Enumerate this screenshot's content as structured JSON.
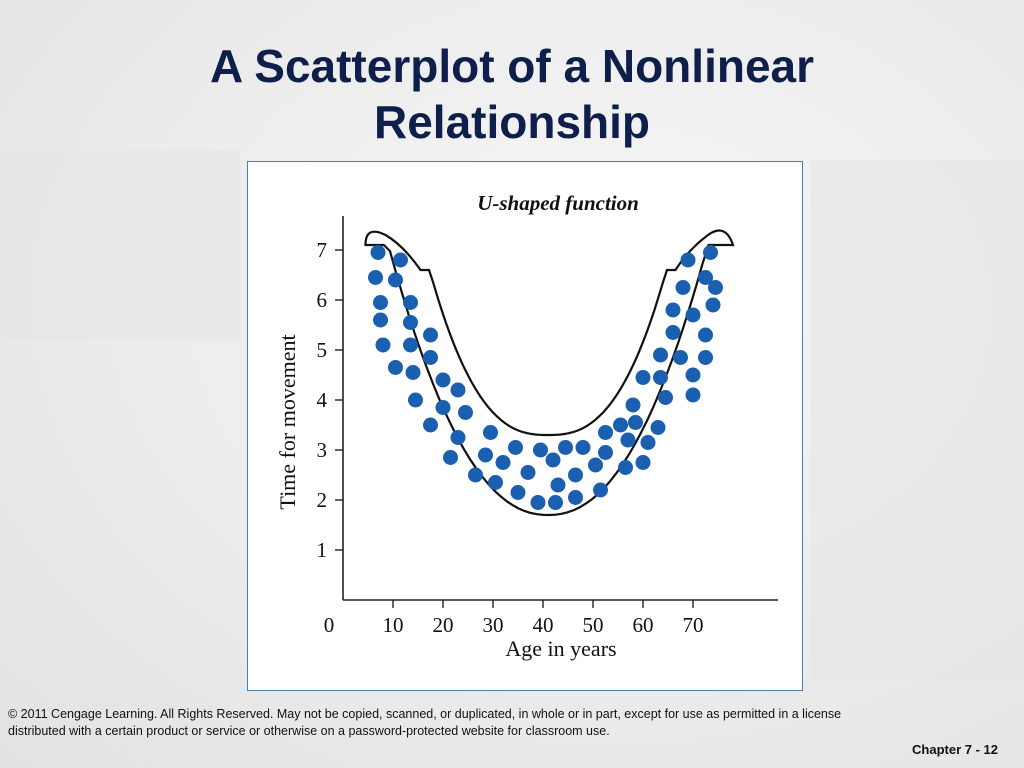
{
  "slide": {
    "title_line1": "A Scatterplot of a Nonlinear",
    "title_line2": "Relationship",
    "footer_line1": "© 2011 Cengage Learning. All Rights Reserved. May not be copied, scanned, or duplicated, in whole or in part, except for use as permitted in a license",
    "footer_line2": "distributed with a certain product or service or otherwise on a password-protected website for classroom use.",
    "page_label": "Chapter 7 - 12"
  },
  "colors": {
    "title": "#0d1f4a",
    "point": "#1a5fb0",
    "panel_border": "#4a7fa8"
  },
  "chart_data": {
    "type": "scatter",
    "title": "U-shaped function",
    "xlabel": "Age in years",
    "ylabel": "Time for movement",
    "xlim": [
      0,
      80
    ],
    "ylim": [
      0,
      7.6
    ],
    "x_ticks": [
      "0",
      "10",
      "20",
      "30",
      "40",
      "50",
      "60",
      "70"
    ],
    "x_tick_values": [
      0,
      10,
      20,
      30,
      40,
      50,
      60,
      70
    ],
    "y_ticks": [
      "1",
      "2",
      "3",
      "4",
      "5",
      "6",
      "7"
    ],
    "y_tick_values": [
      1,
      2,
      3,
      4,
      5,
      6,
      7
    ],
    "grid": false,
    "legend": "none",
    "envelope": "closed U-shaped outline enclosing all points",
    "points": [
      [
        7,
        6.95
      ],
      [
        11.5,
        6.8
      ],
      [
        6.5,
        6.45
      ],
      [
        10.5,
        6.4
      ],
      [
        7.5,
        5.95
      ],
      [
        13.5,
        5.95
      ],
      [
        7.5,
        5.6
      ],
      [
        13.5,
        5.55
      ],
      [
        17.5,
        5.3
      ],
      [
        8,
        5.1
      ],
      [
        13.5,
        5.1
      ],
      [
        17.5,
        4.85
      ],
      [
        10.5,
        4.65
      ],
      [
        14,
        4.55
      ],
      [
        20,
        4.4
      ],
      [
        23,
        4.2
      ],
      [
        14.5,
        4.0
      ],
      [
        20,
        3.85
      ],
      [
        24.5,
        3.75
      ],
      [
        17.5,
        3.5
      ],
      [
        23,
        3.25
      ],
      [
        29.5,
        3.35
      ],
      [
        21.5,
        2.85
      ],
      [
        28.5,
        2.9
      ],
      [
        34.5,
        3.05
      ],
      [
        39.5,
        3.0
      ],
      [
        44.5,
        3.05
      ],
      [
        48,
        3.05
      ],
      [
        52.5,
        3.35
      ],
      [
        55.5,
        3.5
      ],
      [
        58.5,
        3.55
      ],
      [
        57,
        3.2
      ],
      [
        61,
        3.15
      ],
      [
        52.5,
        2.95
      ],
      [
        42,
        2.8
      ],
      [
        32,
        2.75
      ],
      [
        50.5,
        2.7
      ],
      [
        60,
        2.75
      ],
      [
        26.5,
        2.5
      ],
      [
        30.5,
        2.35
      ],
      [
        37,
        2.55
      ],
      [
        43,
        2.3
      ],
      [
        46.5,
        2.5
      ],
      [
        56.5,
        2.65
      ],
      [
        35,
        2.15
      ],
      [
        46.5,
        2.05
      ],
      [
        51.5,
        2.2
      ],
      [
        39,
        1.95
      ],
      [
        42.5,
        1.95
      ],
      [
        58,
        3.9
      ],
      [
        63,
        3.45
      ],
      [
        64.5,
        4.05
      ],
      [
        60,
        4.45
      ],
      [
        63.5,
        4.45
      ],
      [
        70,
        4.1
      ],
      [
        63.5,
        4.9
      ],
      [
        67.5,
        4.85
      ],
      [
        72.5,
        4.85
      ],
      [
        70,
        4.5
      ],
      [
        66,
        5.35
      ],
      [
        72.5,
        5.3
      ],
      [
        66,
        5.8
      ],
      [
        70,
        5.7
      ],
      [
        74,
        5.9
      ],
      [
        68,
        6.25
      ],
      [
        74.5,
        6.25
      ],
      [
        69,
        6.8
      ],
      [
        72.5,
        6.45
      ],
      [
        73.5,
        6.95
      ]
    ]
  }
}
